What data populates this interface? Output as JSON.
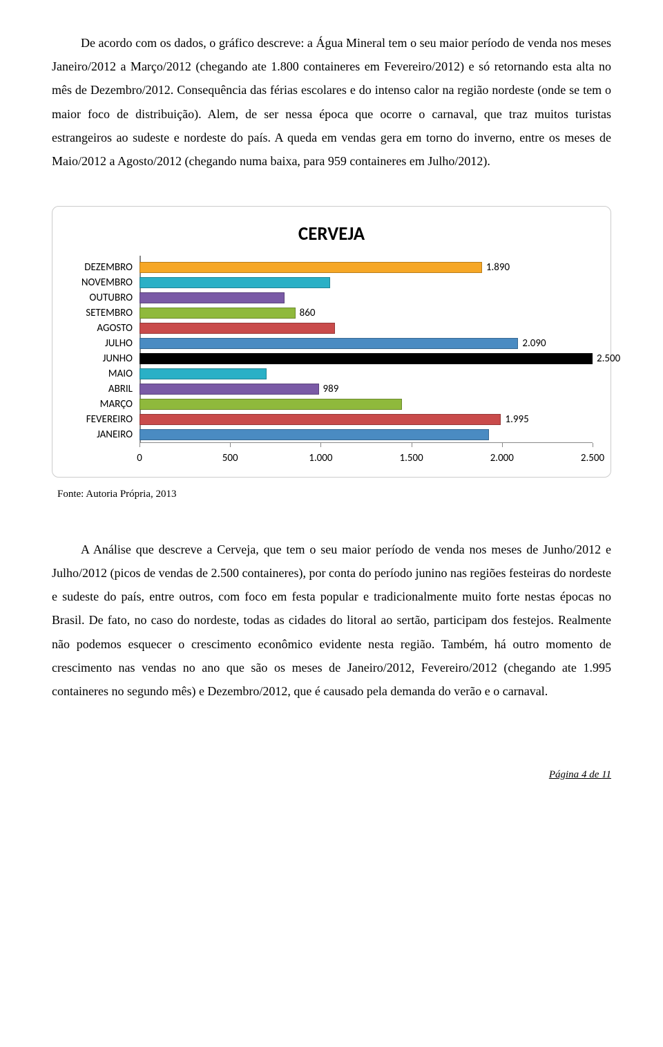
{
  "para1": "De acordo com os dados, o gráfico descreve: a Água Mineral tem o seu maior período de venda nos meses Janeiro/2012 a Março/2012 (chegando ate 1.800 containeres em Fevereiro/2012) e só retornando esta alta no mês de Dezembro/2012. Consequência das férias escolares e do intenso calor na região nordeste (onde se tem o maior foco de distribuição). Alem, de ser nessa época que ocorre o carnaval, que traz muitos turistas estrangeiros ao sudeste e nordeste do país. A queda em vendas gera em torno do inverno, entre os meses de Maio/2012 a Agosto/2012 (chegando numa baixa, para 959 containeres em Julho/2012).",
  "chart": {
    "title": "CERVEJA",
    "xmax": 2500,
    "xticks": [
      {
        "v": 0,
        "label": "0"
      },
      {
        "v": 500,
        "label": "500"
      },
      {
        "v": 1000,
        "label": "1.000"
      },
      {
        "v": 1500,
        "label": "1.500"
      },
      {
        "v": 2000,
        "label": "2.000"
      },
      {
        "v": 2500,
        "label": "2.500"
      }
    ],
    "bars": [
      {
        "label": "DEZEMBRO",
        "value": 1890,
        "show": "1.890",
        "color": "#f6a726"
      },
      {
        "label": "NOVEMBRO",
        "value": 1050,
        "show": "",
        "color": "#2ab0c6"
      },
      {
        "label": "OUTUBRO",
        "value": 800,
        "show": "",
        "color": "#7a5aa6"
      },
      {
        "label": "SETEMBRO",
        "value": 860,
        "show": "860",
        "color": "#8fb93c"
      },
      {
        "label": "AGOSTO",
        "value": 1080,
        "show": "",
        "color": "#c94b4b"
      },
      {
        "label": "JULHO",
        "value": 2090,
        "show": "2.090",
        "color": "#4a8bc2"
      },
      {
        "label": "JUNHO",
        "value": 2500,
        "show": "2.500",
        "color": "#000000"
      },
      {
        "label": "MAIO",
        "value": 700,
        "show": "",
        "color": "#2ab0c6"
      },
      {
        "label": "ABRIL",
        "value": 989,
        "show": "989",
        "color": "#7a5aa6"
      },
      {
        "label": "MARÇO",
        "value": 1450,
        "show": "",
        "color": "#8fb93c"
      },
      {
        "label": "FEVEREIRO",
        "value": 1995,
        "show": "1.995",
        "color": "#c94b4b"
      },
      {
        "label": "JANEIRO",
        "value": 1930,
        "show": "",
        "color": "#4a8bc2"
      }
    ]
  },
  "source": "Fonte: Autoria Própria, 2013",
  "para2": "A Análise que descreve a Cerveja, que tem o seu maior período de venda nos meses de Junho/2012 e Julho/2012 (picos de vendas de 2.500 containeres), por conta do período junino nas regiões festeiras do nordeste e sudeste do país, entre outros, com foco em festa popular e tradicionalmente muito forte nestas épocas no Brasil. De fato, no caso do nordeste, todas as cidades do litoral ao sertão, participam dos festejos. Realmente não podemos esquecer o crescimento econômico evidente nesta região. Também, há outro momento de crescimento nas vendas no ano que são os meses de Janeiro/2012, Fevereiro/2012 (chegando ate 1.995 containeres no segundo mês) e Dezembro/2012, que é causado pela demanda do verão e o carnaval.",
  "footer_prefix": "Página ",
  "footer_page": "4",
  "footer_mid": " de ",
  "footer_total": "11"
}
